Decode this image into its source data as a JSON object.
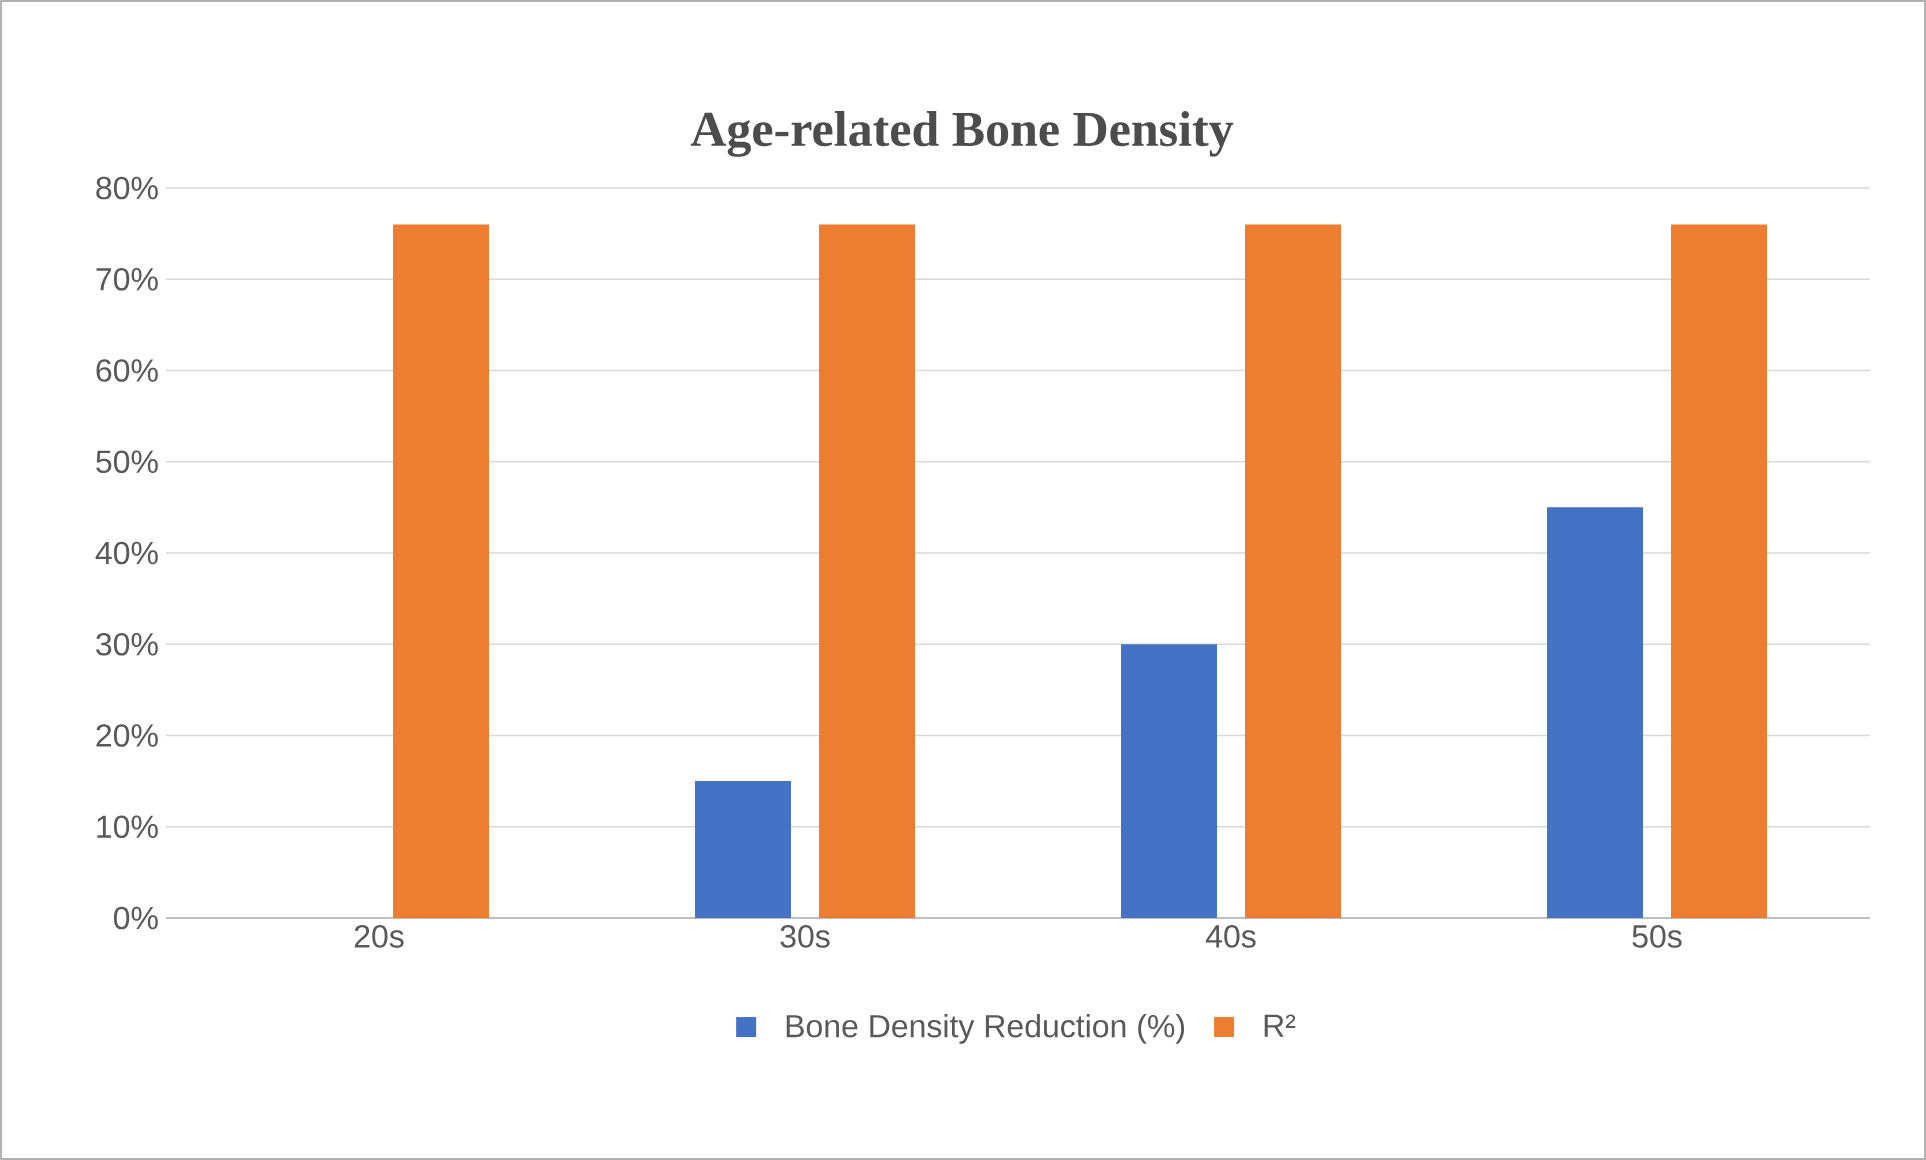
{
  "chart_data": {
    "type": "bar",
    "title": "Age-related Bone Density",
    "categories": [
      "20s",
      "30s",
      "40s",
      "50s"
    ],
    "series": [
      {
        "name": "Bone Density Reduction (%)",
        "color": "#4472c4",
        "values": [
          0,
          15,
          30,
          45
        ]
      },
      {
        "name": "R²",
        "color": "#ed7d31",
        "values": [
          76,
          76,
          76,
          76
        ]
      }
    ],
    "ylim": [
      0,
      80
    ],
    "yticks": [
      {
        "value": 0,
        "label": "0%"
      },
      {
        "value": 10,
        "label": "10%"
      },
      {
        "value": 20,
        "label": "20%"
      },
      {
        "value": 30,
        "label": "30%"
      },
      {
        "value": 40,
        "label": "40%"
      },
      {
        "value": 50,
        "label": "50%"
      },
      {
        "value": 60,
        "label": "60%"
      },
      {
        "value": 70,
        "label": "70%"
      },
      {
        "value": 80,
        "label": "80%"
      }
    ],
    "grid": "y",
    "legend": "bottom"
  }
}
